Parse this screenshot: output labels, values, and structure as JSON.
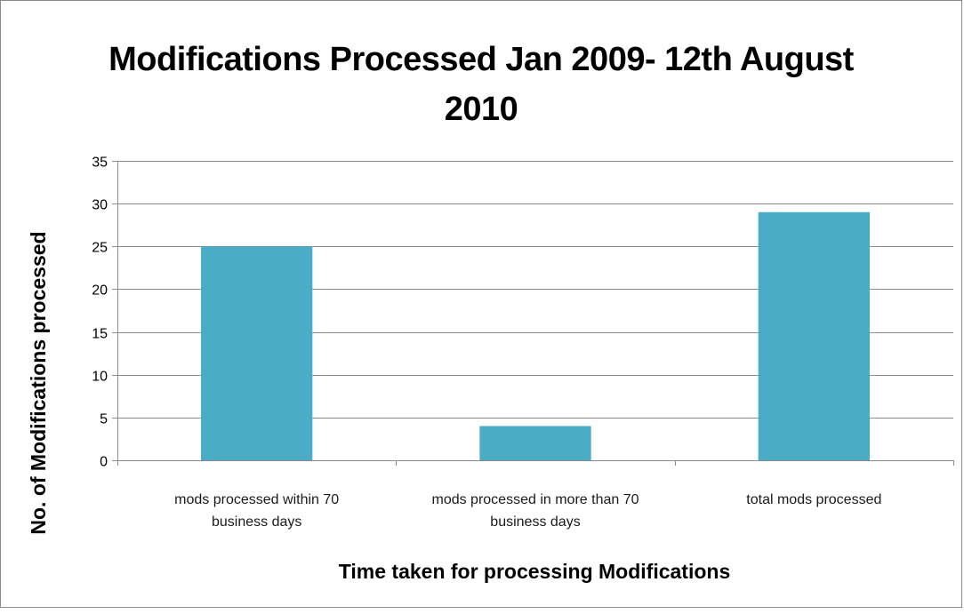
{
  "chart_data": {
    "type": "bar",
    "title": "Modifications Processed Jan 2009- 12th August 2010",
    "xlabel": "Time taken for processing Modifications",
    "ylabel": "No. of Modifications processed",
    "categories": [
      [
        "mods processed within 70",
        "business days"
      ],
      [
        "mods processed in more than 70",
        "business days"
      ],
      [
        "total mods processed"
      ]
    ],
    "values": [
      25,
      4,
      29
    ],
    "ylim": [
      0,
      35
    ],
    "yticks": [
      0,
      5,
      10,
      15,
      20,
      25,
      30,
      35
    ],
    "grid": true,
    "legend": "none",
    "bar_color": "#4bacc6",
    "grid_color": "#8c8c8c"
  }
}
